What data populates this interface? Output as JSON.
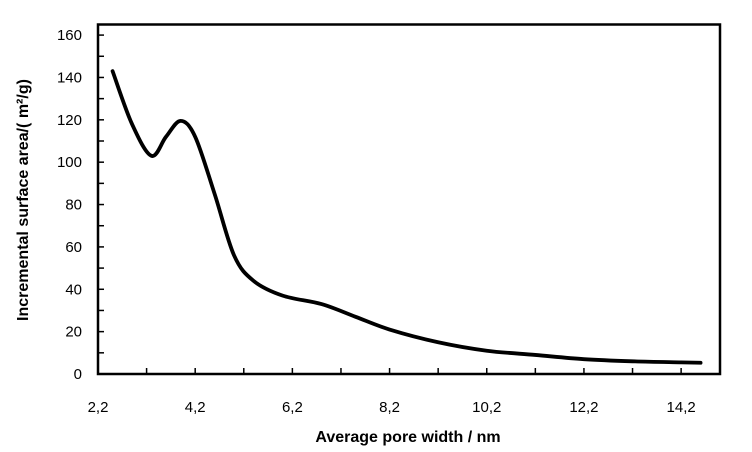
{
  "chart_data": {
    "type": "line",
    "title": "",
    "xlabel": "Average pore width / nm",
    "ylabel": "Incremental surface area/( m²/g)",
    "xlim": [
      2.2,
      15.0
    ],
    "ylim": [
      0,
      165
    ],
    "x_ticks": [
      2.2,
      4.2,
      6.2,
      8.2,
      10.2,
      12.2,
      14.2
    ],
    "x_tick_labels": [
      "2,2",
      "4,2",
      "6,2",
      "8,2",
      "10,2",
      "12,2",
      "14,2"
    ],
    "x_minor_step": 1,
    "y_ticks": [
      0,
      20,
      40,
      60,
      80,
      100,
      120,
      140,
      160
    ],
    "y_tick_labels": [
      "0",
      "20",
      "40",
      "60",
      "80",
      "100",
      "120",
      "140",
      "160"
    ],
    "y_minor_step": 10,
    "grid": false,
    "legend": "none",
    "series": [
      {
        "name": "Incremental surface area",
        "color": "#000000",
        "x": [
          2.5,
          2.9,
          3.3,
          3.6,
          3.9,
          4.2,
          4.6,
          5.0,
          5.4,
          6.0,
          6.8,
          7.5,
          8.2,
          9.2,
          10.2,
          11.2,
          12.2,
          13.2,
          14.2,
          14.6
        ],
        "y": [
          143,
          118,
          103,
          112,
          119.5,
          112,
          85,
          56,
          44,
          37,
          33,
          27,
          21,
          15,
          11,
          9,
          7,
          6,
          5.5,
          5.3
        ]
      }
    ]
  }
}
